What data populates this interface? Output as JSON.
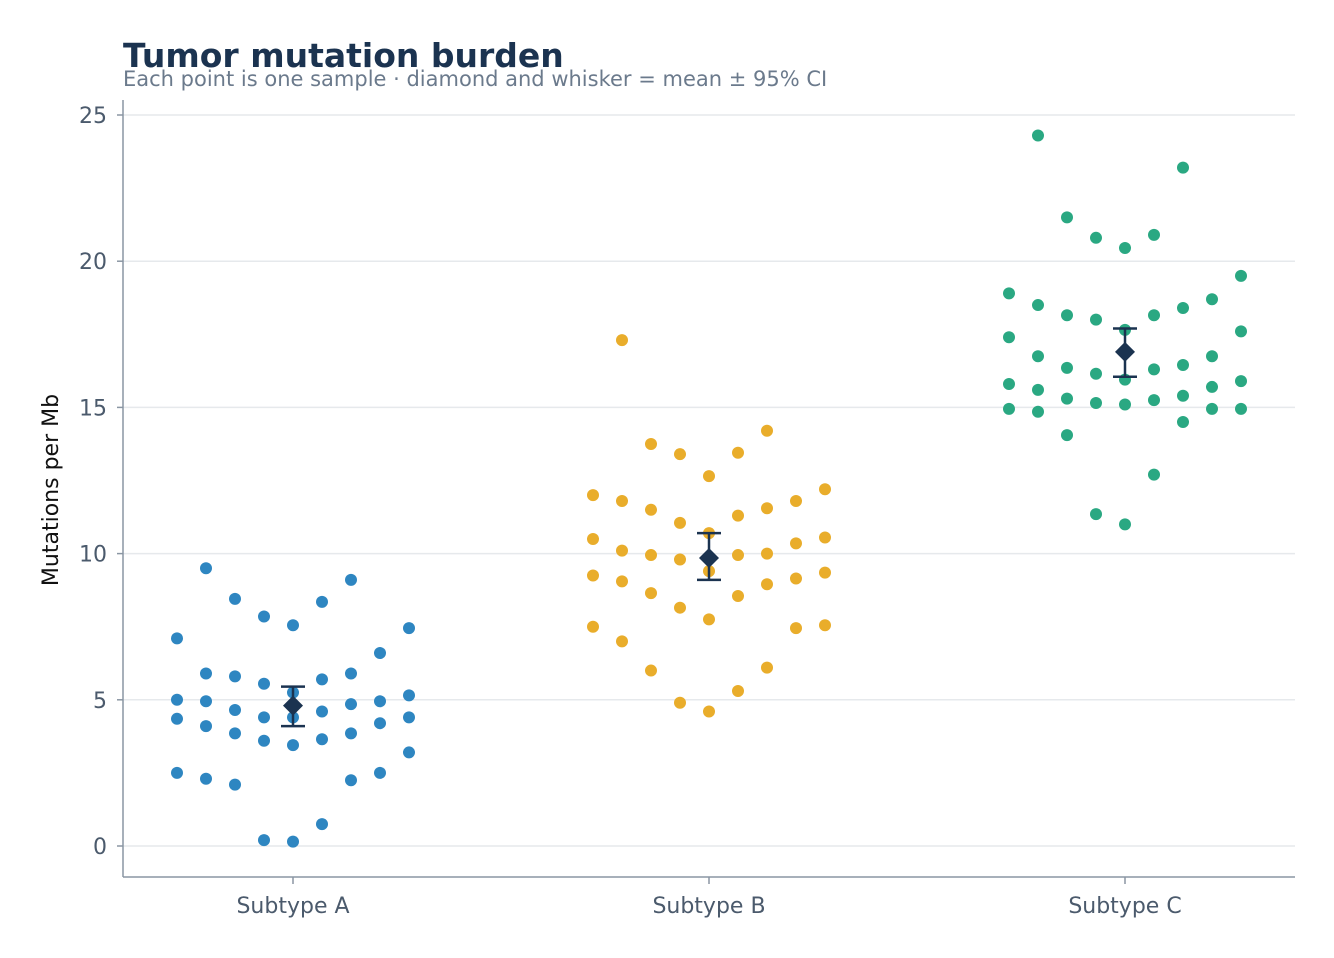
{
  "chart_data": {
    "type": "scatter",
    "title": "Tumor mutation burden",
    "subtitle": "Each point is one sample · diamond and whisker = mean ± 95% CI",
    "xlabel": "",
    "ylabel": "Mutations per Mb",
    "categories": [
      "Subtype A",
      "Subtype B",
      "Subtype C"
    ],
    "ylim": [
      -1,
      25.5
    ],
    "yticks": [
      "0",
      "5",
      "10",
      "15",
      "20",
      "25"
    ],
    "grid": "horizontal",
    "legend": "none",
    "colors": {
      "Subtype A": "#2e86c1",
      "Subtype B": "#e9ad2b",
      "Subtype C": "#2aa882",
      "summary": "#1b3350"
    },
    "series": [
      {
        "category": "Subtype A",
        "points": [
          {
            "offset": -4,
            "y": 7.1
          },
          {
            "offset": -4,
            "y": 5.0
          },
          {
            "offset": -4,
            "y": 4.35
          },
          {
            "offset": -4,
            "y": 2.5
          },
          {
            "offset": -3,
            "y": 9.5
          },
          {
            "offset": -3,
            "y": 5.9
          },
          {
            "offset": -3,
            "y": 4.95
          },
          {
            "offset": -3,
            "y": 4.1
          },
          {
            "offset": -3,
            "y": 2.3
          },
          {
            "offset": -2,
            "y": 8.45
          },
          {
            "offset": -2,
            "y": 5.8
          },
          {
            "offset": -2,
            "y": 4.65
          },
          {
            "offset": -2,
            "y": 3.85
          },
          {
            "offset": -2,
            "y": 2.1
          },
          {
            "offset": -1,
            "y": 7.85
          },
          {
            "offset": -1,
            "y": 5.55
          },
          {
            "offset": -1,
            "y": 4.4
          },
          {
            "offset": -1,
            "y": 3.6
          },
          {
            "offset": -1,
            "y": 0.2
          },
          {
            "offset": 0,
            "y": 7.55
          },
          {
            "offset": 0,
            "y": 5.25
          },
          {
            "offset": 0,
            "y": 4.4
          },
          {
            "offset": 0,
            "y": 3.45
          },
          {
            "offset": 0,
            "y": 0.15
          },
          {
            "offset": 1,
            "y": 8.35
          },
          {
            "offset": 1,
            "y": 5.7
          },
          {
            "offset": 1,
            "y": 4.6
          },
          {
            "offset": 1,
            "y": 3.65
          },
          {
            "offset": 1,
            "y": 0.75
          },
          {
            "offset": 2,
            "y": 9.1
          },
          {
            "offset": 2,
            "y": 5.9
          },
          {
            "offset": 2,
            "y": 4.85
          },
          {
            "offset": 2,
            "y": 3.85
          },
          {
            "offset": 2,
            "y": 2.25
          },
          {
            "offset": 3,
            "y": 6.6
          },
          {
            "offset": 3,
            "y": 4.95
          },
          {
            "offset": 3,
            "y": 4.2
          },
          {
            "offset": 3,
            "y": 2.5
          },
          {
            "offset": 4,
            "y": 7.45
          },
          {
            "offset": 4,
            "y": 5.15
          },
          {
            "offset": 4,
            "y": 4.4
          },
          {
            "offset": 4,
            "y": 3.2
          }
        ],
        "mean": 4.8,
        "ci_low": 4.1,
        "ci_high": 5.45
      },
      {
        "category": "Subtype B",
        "points": [
          {
            "offset": -4,
            "y": 12.0
          },
          {
            "offset": -4,
            "y": 10.5
          },
          {
            "offset": -4,
            "y": 9.25
          },
          {
            "offset": -4,
            "y": 7.5
          },
          {
            "offset": -3,
            "y": 17.3
          },
          {
            "offset": -3,
            "y": 11.8
          },
          {
            "offset": -3,
            "y": 10.1
          },
          {
            "offset": -3,
            "y": 9.05
          },
          {
            "offset": -3,
            "y": 7.0
          },
          {
            "offset": -2,
            "y": 13.75
          },
          {
            "offset": -2,
            "y": 11.5
          },
          {
            "offset": -2,
            "y": 9.95
          },
          {
            "offset": -2,
            "y": 8.65
          },
          {
            "offset": -2,
            "y": 6.0
          },
          {
            "offset": -1,
            "y": 13.4
          },
          {
            "offset": -1,
            "y": 11.05
          },
          {
            "offset": -1,
            "y": 9.8
          },
          {
            "offset": -1,
            "y": 8.15
          },
          {
            "offset": -1,
            "y": 4.9
          },
          {
            "offset": 0,
            "y": 12.65
          },
          {
            "offset": 0,
            "y": 10.7
          },
          {
            "offset": 0,
            "y": 9.4
          },
          {
            "offset": 0,
            "y": 7.75
          },
          {
            "offset": 0,
            "y": 4.6
          },
          {
            "offset": 1,
            "y": 13.45
          },
          {
            "offset": 1,
            "y": 11.3
          },
          {
            "offset": 1,
            "y": 9.95
          },
          {
            "offset": 1,
            "y": 8.55
          },
          {
            "offset": 1,
            "y": 5.3
          },
          {
            "offset": 2,
            "y": 14.2
          },
          {
            "offset": 2,
            "y": 11.55
          },
          {
            "offset": 2,
            "y": 10.0
          },
          {
            "offset": 2,
            "y": 8.95
          },
          {
            "offset": 2,
            "y": 6.1
          },
          {
            "offset": 3,
            "y": 11.8
          },
          {
            "offset": 3,
            "y": 10.35
          },
          {
            "offset": 3,
            "y": 9.15
          },
          {
            "offset": 3,
            "y": 7.45
          },
          {
            "offset": 4,
            "y": 12.2
          },
          {
            "offset": 4,
            "y": 10.55
          },
          {
            "offset": 4,
            "y": 9.35
          },
          {
            "offset": 4,
            "y": 7.55
          }
        ],
        "mean": 9.85,
        "ci_low": 9.1,
        "ci_high": 10.7
      },
      {
        "category": "Subtype C",
        "points": [
          {
            "offset": -4,
            "y": 18.9
          },
          {
            "offset": -4,
            "y": 17.4
          },
          {
            "offset": -4,
            "y": 15.8
          },
          {
            "offset": -4,
            "y": 14.95
          },
          {
            "offset": -3,
            "y": 24.3
          },
          {
            "offset": -3,
            "y": 18.5
          },
          {
            "offset": -3,
            "y": 16.75
          },
          {
            "offset": -3,
            "y": 15.6
          },
          {
            "offset": -3,
            "y": 14.85
          },
          {
            "offset": -2,
            "y": 21.5
          },
          {
            "offset": -2,
            "y": 18.15
          },
          {
            "offset": -2,
            "y": 16.35
          },
          {
            "offset": -2,
            "y": 15.3
          },
          {
            "offset": -2,
            "y": 14.05
          },
          {
            "offset": -1,
            "y": 20.8
          },
          {
            "offset": -1,
            "y": 18.0
          },
          {
            "offset": -1,
            "y": 16.15
          },
          {
            "offset": -1,
            "y": 15.15
          },
          {
            "offset": -1,
            "y": 11.35
          },
          {
            "offset": 0,
            "y": 20.45
          },
          {
            "offset": 0,
            "y": 17.65
          },
          {
            "offset": 0,
            "y": 15.95
          },
          {
            "offset": 0,
            "y": 15.1
          },
          {
            "offset": 0,
            "y": 11.0
          },
          {
            "offset": 1,
            "y": 20.9
          },
          {
            "offset": 1,
            "y": 18.15
          },
          {
            "offset": 1,
            "y": 16.3
          },
          {
            "offset": 1,
            "y": 15.25
          },
          {
            "offset": 1,
            "y": 12.7
          },
          {
            "offset": 2,
            "y": 23.2
          },
          {
            "offset": 2,
            "y": 18.4
          },
          {
            "offset": 2,
            "y": 16.45
          },
          {
            "offset": 2,
            "y": 15.4
          },
          {
            "offset": 2,
            "y": 14.5
          },
          {
            "offset": 3,
            "y": 18.7
          },
          {
            "offset": 3,
            "y": 16.75
          },
          {
            "offset": 3,
            "y": 15.7
          },
          {
            "offset": 3,
            "y": 14.95
          },
          {
            "offset": 4,
            "y": 19.5
          },
          {
            "offset": 4,
            "y": 17.6
          },
          {
            "offset": 4,
            "y": 15.9
          },
          {
            "offset": 4,
            "y": 14.95
          }
        ],
        "mean": 16.9,
        "ci_low": 16.05,
        "ci_high": 17.7
      }
    ]
  }
}
